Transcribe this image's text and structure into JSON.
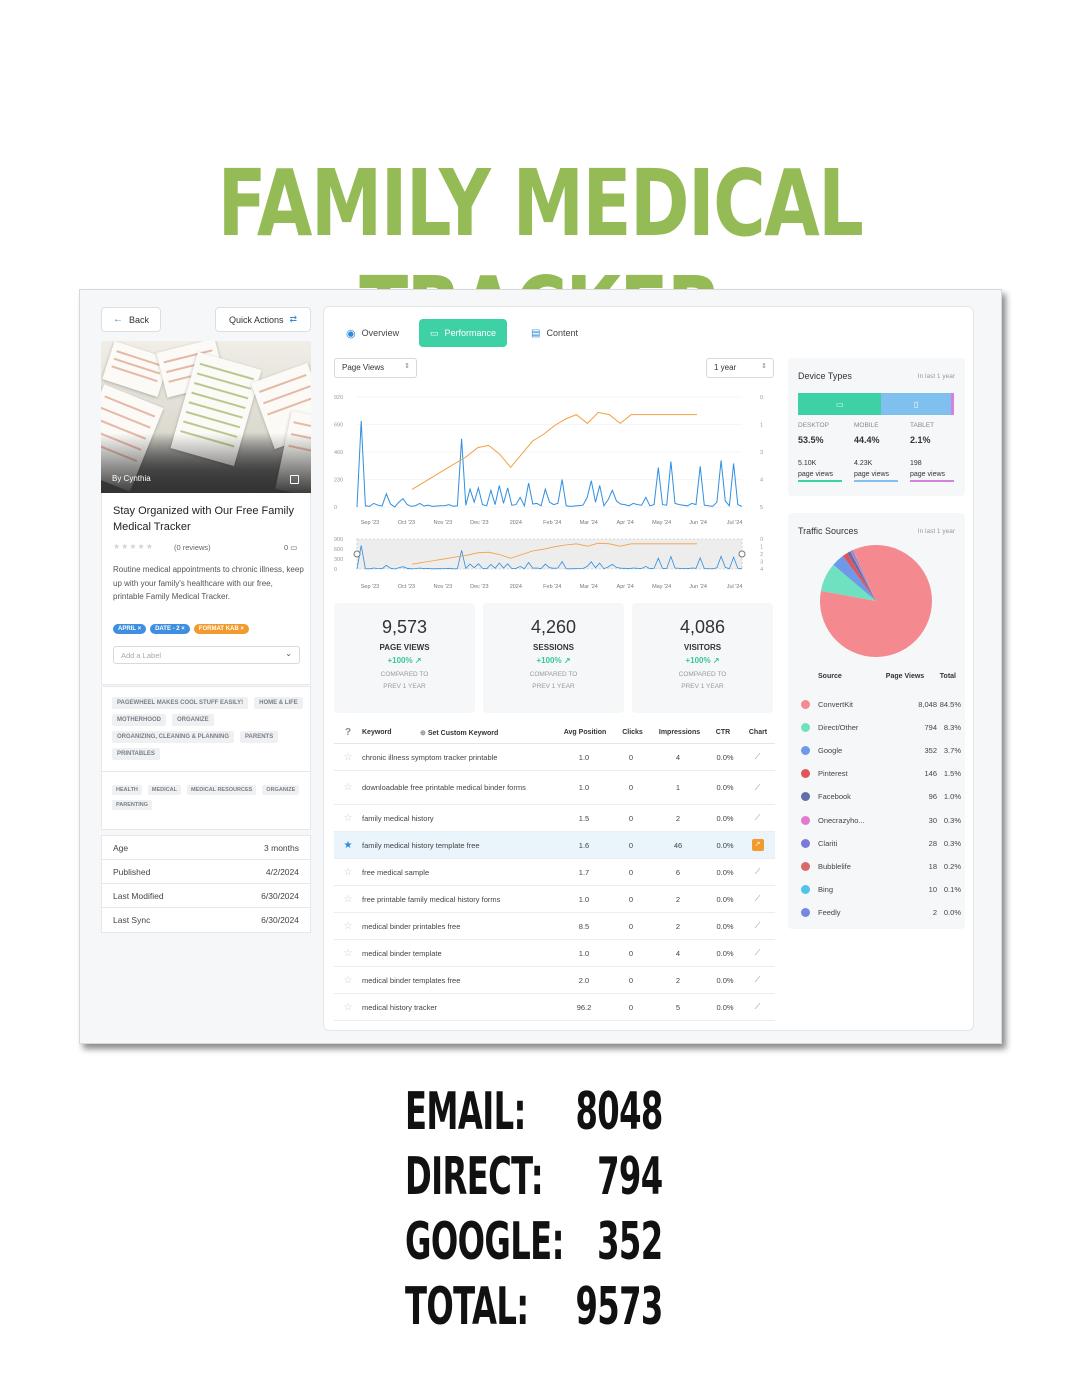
{
  "hero_title": "FAMILY MEDICAL TRACKER",
  "sidebar": {
    "back_label": "Back",
    "quick_actions_label": "Quick Actions",
    "author": "By Cynthia",
    "post_title": "Stay Organized with Our Free Family Medical Tracker",
    "reviews": "(0 reviews)",
    "comments": "0",
    "description": "Routine medical appointments to chronic illness, keep up with your family's healthcare with our free, printable Family Medical Tracker.",
    "tags": [
      {
        "label": "APRIL",
        "color": "#3e8fe0"
      },
      {
        "label": "DATE - 2",
        "color": "#3e8fe0"
      },
      {
        "label": "FORMAT KAB",
        "color": "#f39a2e"
      }
    ],
    "label_placeholder": "Add a Label",
    "categories": [
      "PAGEWHEEL MAKES COOL STUFF EASILY!",
      "HOME & LIFE",
      "MOTHERHOOD",
      "ORGANIZE",
      "ORGANIZING, CLEANING & PLANNING",
      "PARENTS",
      "PRINTABLES"
    ],
    "keywords": [
      "HEALTH",
      "MEDICAL",
      "MEDICAL RESOURCES",
      "ORGANIZE",
      "PARENTING"
    ],
    "meta": [
      {
        "label": "Age",
        "value": "3 months"
      },
      {
        "label": "Published",
        "value": "4/2/2024"
      },
      {
        "label": "Last Modified",
        "value": "6/30/2024"
      },
      {
        "label": "Last Sync",
        "value": "6/30/2024"
      }
    ]
  },
  "tabs": {
    "overview": "Overview",
    "performance": "Performance",
    "content": "Content"
  },
  "controls": {
    "metric": "Page Views",
    "range": "1 year"
  },
  "chart_data": {
    "type": "line",
    "x_ticks": [
      "Sep '23",
      "Oct '23",
      "Nov '23",
      "Dec '23",
      "2024",
      "Feb '24",
      "Mar '24",
      "Apr '24",
      "May '24",
      "Jun '24",
      "Jul '24"
    ],
    "y_left_ticks": [
      "920",
      "690",
      "460",
      "230",
      "0"
    ],
    "y_right_ticks": [
      "0",
      "1",
      "3",
      "4",
      "5"
    ],
    "mini_y_ticks": [
      "900",
      "600",
      "300",
      "0"
    ],
    "mini_y_right_ticks": [
      "0",
      "1",
      "2",
      "3",
      "4"
    ],
    "colors": {
      "page_views": "#2f8fe0",
      "position": "#f0a040"
    },
    "series": [
      {
        "values": [
          0,
          720,
          10,
          5,
          30,
          15,
          8,
          110,
          25,
          0,
          40,
          70,
          20,
          5,
          12,
          30,
          8,
          15,
          5,
          8,
          10,
          12,
          20,
          6,
          10,
          570,
          15,
          150,
          40,
          160,
          20,
          10,
          140,
          20,
          180,
          30,
          160,
          15,
          20,
          80,
          10,
          200,
          25,
          30,
          10,
          150,
          40,
          20,
          30,
          230,
          10,
          5,
          8,
          12,
          15,
          80,
          220,
          40,
          180,
          10,
          60,
          140,
          50,
          25,
          20,
          10,
          30,
          20,
          15,
          80,
          10,
          20,
          330,
          20,
          15,
          380,
          30,
          20,
          15,
          10,
          30,
          20,
          340,
          15,
          10,
          5,
          40,
          390,
          50,
          10,
          365,
          20,
          5
        ]
      },
      {
        "x_from": "Oct '23",
        "values": [
          4.2,
          3.9,
          3.6,
          3.3,
          3.0,
          2.7,
          2.3,
          2.2,
          2.6,
          3.2,
          2.6,
          2.0,
          1.7,
          1.3,
          1.0,
          0.8,
          1.2,
          0.7,
          0.8,
          1.2,
          0.8,
          0.8,
          0.8,
          0.8,
          0.8,
          0.8,
          0.8
        ]
      }
    ]
  },
  "stats": [
    {
      "value": "9,573",
      "label": "PAGE VIEWS",
      "change": "+100% ↗",
      "compare1": "COMPARED TO",
      "compare2": "PREV 1 YEAR"
    },
    {
      "value": "4,260",
      "label": "SESSIONS",
      "change": "+100% ↗",
      "compare1": "COMPARED TO",
      "compare2": "PREV 1 YEAR"
    },
    {
      "value": "4,086",
      "label": "VISITORS",
      "change": "+100% ↗",
      "compare1": "COMPARED TO",
      "compare2": "PREV 1 YEAR"
    }
  ],
  "kw_table": {
    "headers": {
      "keyword": "Keyword",
      "custom": "Set Custom Keyword",
      "pos": "Avg Position",
      "clicks": "Clicks",
      "imp": "Impressions",
      "ctr": "CTR",
      "chart": "Chart"
    },
    "rows": [
      {
        "kw": "chronic illness symptom tracker printable",
        "pos": "1.0",
        "clicks": "0",
        "imp": "4",
        "ctr": "0.0%"
      },
      {
        "kw": "downloadable free printable medical binder forms",
        "pos": "1.0",
        "clicks": "0",
        "imp": "1",
        "ctr": "0.0%"
      },
      {
        "kw": "family medical history",
        "pos": "1.5",
        "clicks": "0",
        "imp": "2",
        "ctr": "0.0%"
      },
      {
        "kw": "family medical history template free",
        "pos": "1.6",
        "clicks": "0",
        "imp": "46",
        "ctr": "0.0%",
        "starred": true
      },
      {
        "kw": "free medical sample",
        "pos": "1.7",
        "clicks": "0",
        "imp": "6",
        "ctr": "0.0%"
      },
      {
        "kw": "free printable family medical history forms",
        "pos": "1.0",
        "clicks": "0",
        "imp": "2",
        "ctr": "0.0%"
      },
      {
        "kw": "medical binder printables free",
        "pos": "8.5",
        "clicks": "0",
        "imp": "2",
        "ctr": "0.0%"
      },
      {
        "kw": "medical binder template",
        "pos": "1.0",
        "clicks": "0",
        "imp": "4",
        "ctr": "0.0%"
      },
      {
        "kw": "medical binder templates free",
        "pos": "2.0",
        "clicks": "0",
        "imp": "2",
        "ctr": "0.0%"
      },
      {
        "kw": "medical history tracker",
        "pos": "96.2",
        "clicks": "0",
        "imp": "5",
        "ctr": "0.0%"
      }
    ]
  },
  "devices": {
    "title": "Device Types",
    "subtitle": "In last 1 year",
    "items": [
      {
        "label": "DESKTOP",
        "pct": "53.5%",
        "views": "5.10K",
        "pv": "page views",
        "share": 0.535,
        "color": "#3ed1a6"
      },
      {
        "label": "MOBILE",
        "pct": "44.4%",
        "views": "4.23K",
        "pv": "page views",
        "share": 0.444,
        "color": "#7fc0ee"
      },
      {
        "label": "TABLET",
        "pct": "2.1%",
        "views": "198",
        "pv": "page views",
        "share": 0.021,
        "color": "#d382e0"
      }
    ]
  },
  "sources": {
    "title": "Traffic Sources",
    "subtitle": "In last 1 year",
    "headers": {
      "source": "Source",
      "pv": "Page Views",
      "total": "Total"
    },
    "rows": [
      {
        "name": "ConvertKit",
        "pv": "8,048",
        "total": "84.5%",
        "share": 84.5,
        "color": "#f48a8f"
      },
      {
        "name": "Direct/Other",
        "pv": "794",
        "total": "8.3%",
        "share": 8.3,
        "color": "#6fe0c0"
      },
      {
        "name": "Google",
        "pv": "352",
        "total": "3.7%",
        "share": 3.7,
        "color": "#6e98e8"
      },
      {
        "name": "Pinterest",
        "pv": "146",
        "total": "1.5%",
        "share": 1.5,
        "color": "#e0545c"
      },
      {
        "name": "Facebook",
        "pv": "96",
        "total": "1.0%",
        "share": 1.0,
        "color": "#5f6fa8"
      },
      {
        "name": "Onecrazyho...",
        "pv": "30",
        "total": "0.3%",
        "share": 0.3,
        "color": "#e07ad0"
      },
      {
        "name": "Clariti",
        "pv": "28",
        "total": "0.3%",
        "share": 0.3,
        "color": "#7a7ad8"
      },
      {
        "name": "Bubblelife",
        "pv": "18",
        "total": "0.2%",
        "share": 0.2,
        "color": "#d86a6a"
      },
      {
        "name": "Bing",
        "pv": "10",
        "total": "0.1%",
        "share": 0.1,
        "color": "#4fc3e8"
      },
      {
        "name": "Feedly",
        "pv": "2",
        "total": "0.0%",
        "share": 0.0,
        "color": "#7488e0"
      }
    ]
  },
  "summary": [
    {
      "label": "EMAIL:",
      "value": "8048"
    },
    {
      "label": "DIRECT:",
      "value": "794"
    },
    {
      "label": "GOOGLE:",
      "value": "352"
    },
    {
      "label": "TOTAL:",
      "value": "9573"
    }
  ]
}
